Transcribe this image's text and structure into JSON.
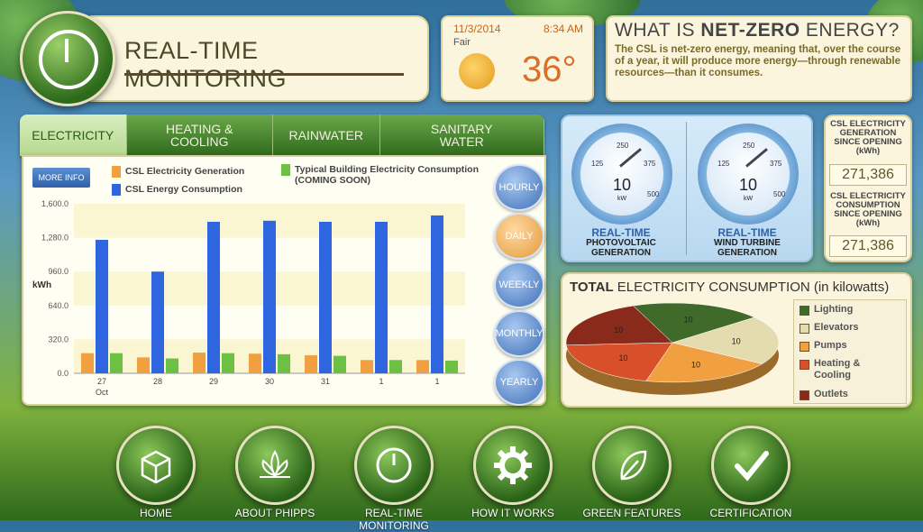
{
  "header": {
    "title": "REAL-TIME MONITORING"
  },
  "weather": {
    "date": "11/3/2014",
    "time": "8:34 AM",
    "condition": "Fair",
    "temperature": "36°"
  },
  "netzero": {
    "heading_pre": "WHAT IS ",
    "heading_bold": "NET-ZERO",
    "heading_post": " ENERGY?",
    "text": "The CSL is net-zero energy, meaning that, over the course of a year, it will produce more energy—through renewable resources—than it consumes."
  },
  "tabs": [
    {
      "label": "ELECTRICITY",
      "active": true
    },
    {
      "label": "HEATING & COOLING",
      "active": false
    },
    {
      "label": "RAINWATER",
      "active": false
    },
    {
      "label": "SANITARY WATER",
      "active": false
    }
  ],
  "more_info": "MORE INFO",
  "legend": {
    "generation": "CSL Electricity Generation",
    "consumption": "CSL Energy Consumption",
    "typical": "Typical Building Electricity Consumption",
    "typical_note": "(COMING SOON)"
  },
  "colors": {
    "generation": "#f0a040",
    "consumption": "#2f66e0",
    "typical": "#6cc044"
  },
  "time_buttons": [
    {
      "label": "HOURLY",
      "active": false
    },
    {
      "label": "DAILY",
      "active": true
    },
    {
      "label": "WEEKLY",
      "active": false
    },
    {
      "label": "MONTHLY",
      "active": false
    },
    {
      "label": "YEARLY",
      "active": false
    }
  ],
  "chart_data": {
    "type": "bar",
    "ylabel": "kWh",
    "ylim": [
      0,
      1600
    ],
    "yticks": [
      "0.0",
      "320.0",
      "640.0",
      "960.0",
      "1,280.0",
      "1,600.0"
    ],
    "categories": [
      "27",
      "28",
      "29",
      "30",
      "31",
      "1",
      "1"
    ],
    "xsub": "Oct",
    "series": [
      {
        "name": "CSL Electricity Generation",
        "values": [
          190,
          150,
          195,
          185,
          170,
          125,
          125
        ]
      },
      {
        "name": "CSL Energy Consumption",
        "values": [
          1260,
          960,
          1430,
          1440,
          1430,
          1430,
          1490
        ]
      },
      {
        "name": "Typical Building Electricity Consumption",
        "values": [
          190,
          140,
          190,
          180,
          165,
          125,
          120
        ]
      }
    ]
  },
  "gauges": [
    {
      "value": "10",
      "unit": "kW",
      "ticks": [
        "125",
        "250",
        "375",
        "500"
      ],
      "label_a": "REAL-TIME",
      "label_b": "PHOTOVOLTAIC GENERATION"
    },
    {
      "value": "10",
      "unit": "kW",
      "ticks": [
        "125",
        "250",
        "375",
        "500"
      ],
      "label_a": "REAL-TIME",
      "label_b": "WIND TURBINE GENERATION"
    }
  ],
  "stats": {
    "gen_label": "CSL ELECTRICITY GENERATION SINCE OPENING (kWh)",
    "gen_value": "271,386",
    "cons_label": "CSL ELECTRICITY CONSUMPTION SINCE OPENING (kWh)",
    "cons_value": "271,386"
  },
  "pie": {
    "title_bold": "TOTAL",
    "title_rest": " ELECTRICITY CONSUMPTION (in kilowatts)",
    "slices": [
      {
        "label": "Lighting",
        "value": 10,
        "color": "#3f6a2a"
      },
      {
        "label": "Elevators",
        "value": 10,
        "color": "#e4dcae"
      },
      {
        "label": "Pumps",
        "value": 10,
        "color": "#f0a040"
      },
      {
        "label": "Heating & Cooling",
        "value": 10,
        "color": "#d8502a"
      },
      {
        "label": "Outlets",
        "value": 10,
        "color": "#8a2a1a"
      }
    ]
  },
  "nav": [
    {
      "label": "HOME",
      "icon": "box-icon"
    },
    {
      "label": "ABOUT PHIPPS",
      "icon": "lotus-icon"
    },
    {
      "label": "REAL-TIME MONITORING",
      "icon": "gauge-icon"
    },
    {
      "label": "HOW IT WORKS",
      "icon": "gear-icon"
    },
    {
      "label": "GREEN FEATURES",
      "icon": "leaf-icon"
    },
    {
      "label": "CERTIFICATION",
      "icon": "checkmark-icon"
    }
  ]
}
